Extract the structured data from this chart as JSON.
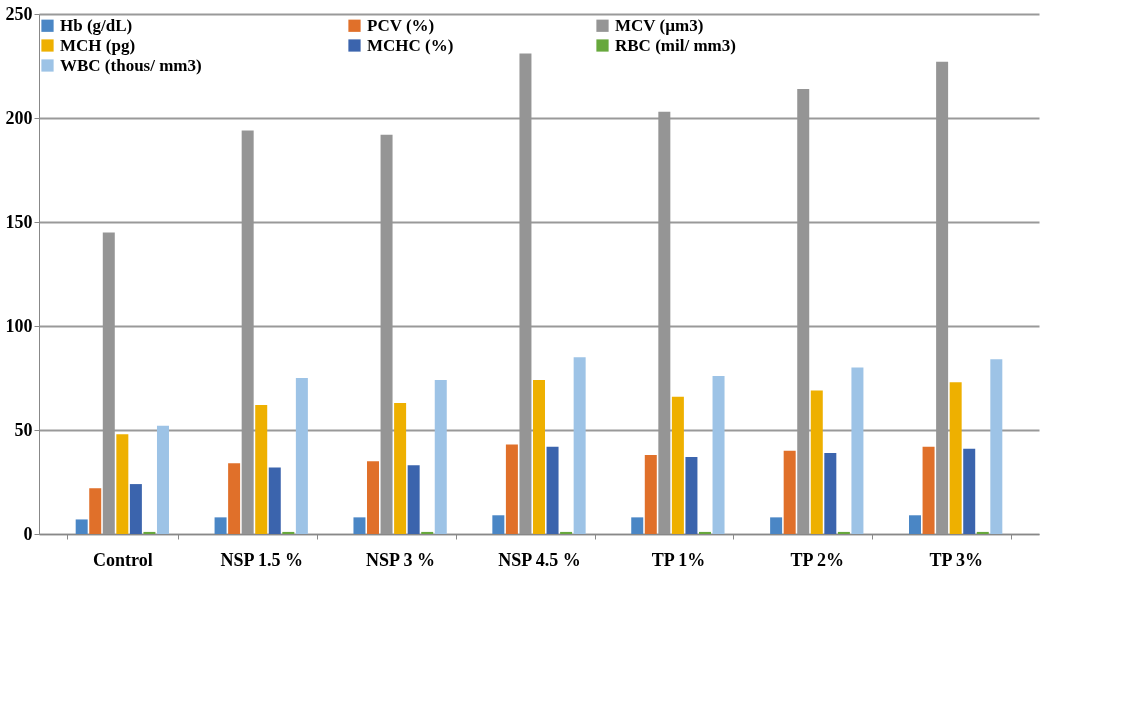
{
  "chart_data": {
    "type": "bar",
    "categories": [
      "Control",
      "NSP 1.5 %",
      "NSP 3 %",
      "NSP 4.5 %",
      "TP 1%",
      "TP 2%",
      "TP 3%"
    ],
    "series": [
      {
        "name": "Hb  (g/dL)",
        "color": "#4a86c5",
        "values": [
          7,
          8,
          8,
          9,
          8,
          8,
          9
        ]
      },
      {
        "name": "PCV (%)",
        "color": "#e0702a",
        "values": [
          22,
          34,
          35,
          43,
          38,
          40,
          42
        ]
      },
      {
        "name": "MCV  (µm3)",
        "color": "#959595",
        "values": [
          145,
          194,
          192,
          231,
          203,
          214,
          227
        ]
      },
      {
        "name": "MCH  (pg)",
        "color": "#eeb000",
        "values": [
          48,
          62,
          63,
          74,
          66,
          69,
          73
        ]
      },
      {
        "name": "MCHC (%)",
        "color": "#3b64ad",
        "values": [
          24,
          32,
          33,
          42,
          37,
          39,
          41
        ]
      },
      {
        "name": "RBC  (mil/ mm3)",
        "color": "#67a83c",
        "values": [
          1,
          1,
          1,
          1,
          1,
          1,
          1
        ]
      },
      {
        "name": "WBC (thous/  mm3)",
        "color": "#9dc3e6",
        "values": [
          52,
          75,
          74,
          85,
          76,
          80,
          84
        ]
      }
    ],
    "ylim": [
      0,
      250
    ],
    "yticks": [
      0,
      50,
      100,
      150,
      200,
      250
    ],
    "grid": "y",
    "legend": "top"
  }
}
